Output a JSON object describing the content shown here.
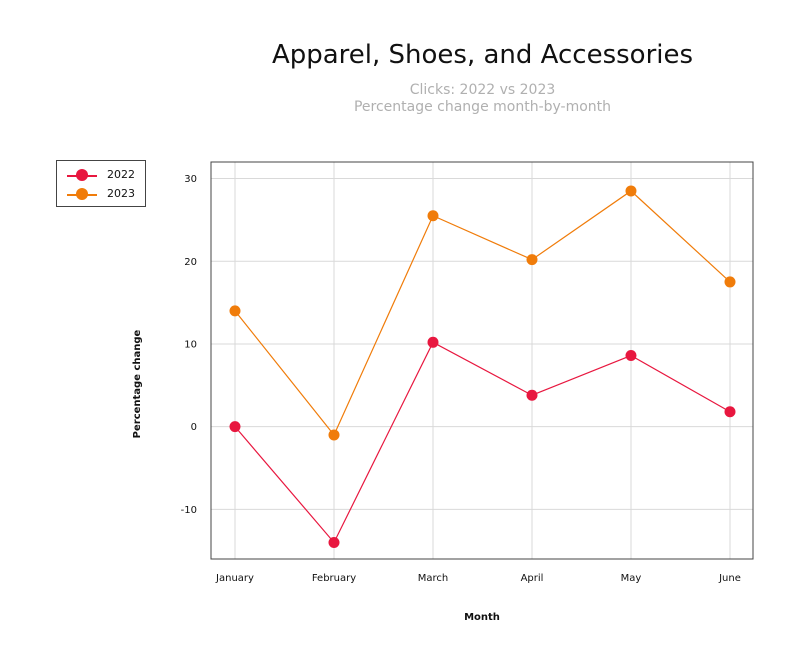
{
  "chart_data": {
    "type": "line",
    "title": "Apparel, Shoes, and Accessories",
    "subtitle_lines": [
      "Clicks: 2022 vs 2023",
      "Percentage change month-by-month"
    ],
    "xlabel": "Month",
    "ylabel": "Percentage change",
    "categories": [
      "January",
      "February",
      "March",
      "April",
      "May",
      "June"
    ],
    "ylim": [
      -16,
      32
    ],
    "yticks": [
      -10,
      0,
      10,
      20,
      30
    ],
    "ytick_labels": [
      "-10",
      "0",
      "10",
      "20",
      "30"
    ],
    "grid": true,
    "legend_position": "top-left",
    "series": [
      {
        "name": "2022",
        "color": "#e8173f",
        "values": [
          0,
          -14,
          10.2,
          3.8,
          8.6,
          1.8
        ]
      },
      {
        "name": "2023",
        "color": "#f07c0a",
        "values": [
          14,
          -1,
          25.5,
          20.2,
          28.5,
          17.5
        ]
      }
    ]
  }
}
